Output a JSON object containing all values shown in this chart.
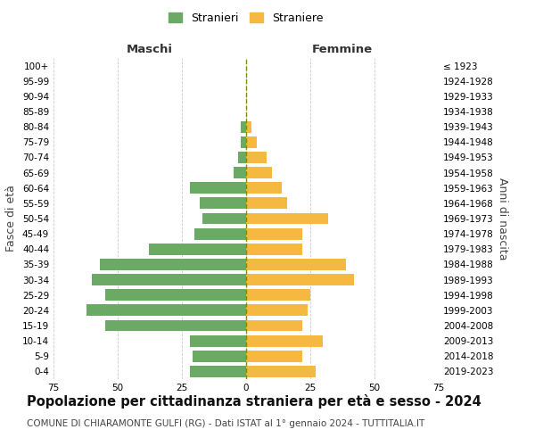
{
  "age_groups": [
    "0-4",
    "5-9",
    "10-14",
    "15-19",
    "20-24",
    "25-29",
    "30-34",
    "35-39",
    "40-44",
    "45-49",
    "50-54",
    "55-59",
    "60-64",
    "65-69",
    "70-74",
    "75-79",
    "80-84",
    "85-89",
    "90-94",
    "95-99",
    "100+"
  ],
  "birth_years": [
    "2019-2023",
    "2014-2018",
    "2009-2013",
    "2004-2008",
    "1999-2003",
    "1994-1998",
    "1989-1993",
    "1984-1988",
    "1979-1983",
    "1974-1978",
    "1969-1973",
    "1964-1968",
    "1959-1963",
    "1954-1958",
    "1949-1953",
    "1944-1948",
    "1939-1943",
    "1934-1938",
    "1929-1933",
    "1924-1928",
    "≤ 1923"
  ],
  "males": [
    22,
    21,
    22,
    55,
    62,
    55,
    60,
    57,
    38,
    20,
    17,
    18,
    22,
    5,
    3,
    2,
    2,
    0,
    0,
    0,
    0
  ],
  "females": [
    27,
    22,
    30,
    22,
    24,
    25,
    42,
    39,
    22,
    22,
    32,
    16,
    14,
    10,
    8,
    4,
    2,
    0,
    0,
    0,
    0
  ],
  "male_color": "#6aaa64",
  "female_color": "#f5b942",
  "center_line_color": "#888800",
  "grid_color": "#cccccc",
  "bg_color": "#ffffff",
  "title": "Popolazione per cittadinanza straniera per età e sesso - 2024",
  "subtitle": "COMUNE DI CHIARAMONTE GULFI (RG) - Dati ISTAT al 1° gennaio 2024 - TUTTITALIA.IT",
  "left_header": "Maschi",
  "right_header": "Femmine",
  "y_left_label": "Fasce di età",
  "y_right_label": "Anni di nascita",
  "legend_male": "Stranieri",
  "legend_female": "Straniere",
  "xlim": 75,
  "title_fontsize": 10.5,
  "subtitle_fontsize": 7.5,
  "tick_fontsize": 7.5,
  "label_fontsize": 9,
  "header_fontsize": 9.5
}
